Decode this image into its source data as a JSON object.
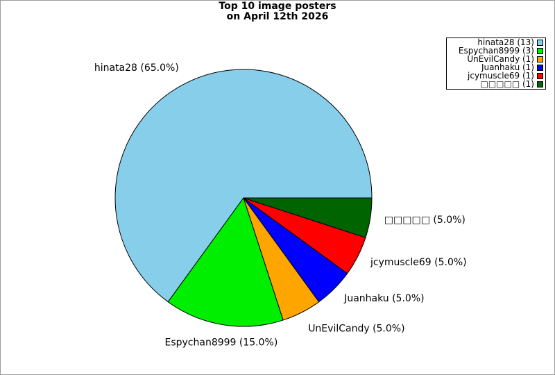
{
  "title": {
    "line1": "Top 10 image posters",
    "line2": "on April 12th 2026"
  },
  "legend": {
    "entries": [
      {
        "label": "hinata28 (13)",
        "color": "#87CEEB"
      },
      {
        "label": "Espychan8999 (3)",
        "color": "#00EE00"
      },
      {
        "label": "UnEvilCandy (1)",
        "color": "#FFA500"
      },
      {
        "label": "Juanhaku (1)",
        "color": "#0000FF"
      },
      {
        "label": "jcymuscle69 (1)",
        "color": "#FF0000"
      },
      {
        "label": "□□□□□ (1)",
        "color": "#006400"
      }
    ]
  },
  "chart_data": {
    "type": "pie",
    "title": "Top 10 image posters on April 12th 2026",
    "total_images": 20,
    "start_angle_deg": 0,
    "direction": "counterclockwise",
    "categories": [
      "hinata28",
      "Espychan8999",
      "UnEvilCandy",
      "Juanhaku",
      "jcymuscle69",
      "□□□□□"
    ],
    "values": [
      13,
      3,
      1,
      1,
      1,
      1
    ],
    "slices": [
      {
        "name": "hinata28",
        "count": 13,
        "percent": 65.0,
        "label": "hinata28 (65.0%)",
        "color": "#87CEEB"
      },
      {
        "name": "Espychan8999",
        "count": 3,
        "percent": 15.0,
        "label": "Espychan8999 (15.0%)",
        "color": "#00EE00"
      },
      {
        "name": "UnEvilCandy",
        "count": 1,
        "percent": 5.0,
        "label": "UnEvilCandy (5.0%)",
        "color": "#FFA500"
      },
      {
        "name": "Juanhaku",
        "count": 1,
        "percent": 5.0,
        "label": "Juanhaku (5.0%)",
        "color": "#0000FF"
      },
      {
        "name": "jcymuscle69",
        "count": 1,
        "percent": 5.0,
        "label": "jcymuscle69 (5.0%)",
        "color": "#FF0000"
      },
      {
        "name": "□□□□□",
        "count": 1,
        "percent": 5.0,
        "label": "□□□□□ (5.0%)",
        "color": "#006400"
      }
    ],
    "legend_position": "upper right",
    "wedge_edge_color": "#000000",
    "background_color": "#ffffff"
  }
}
